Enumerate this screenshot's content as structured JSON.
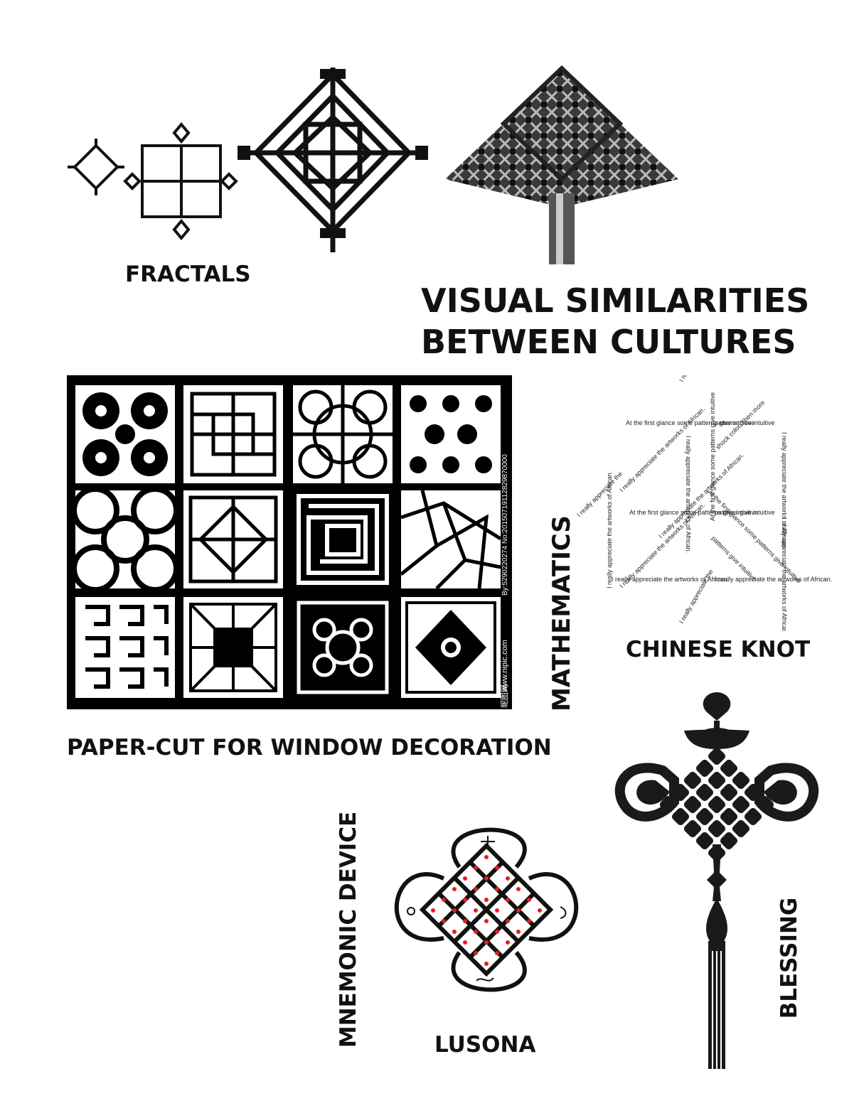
{
  "title": {
    "line1": "VISUAL SIMILARITIES",
    "line2": "BETWEEN CULTURES"
  },
  "labels": {
    "fractals": "FRACTALS",
    "paper_cut": "PAPER-CUT FOR WINDOW DECORATION",
    "mathematics": "MATHEMATICS",
    "chinese_knot": "CHINESE KNOT",
    "mnemonic_device": "MNEMONIC DEVICE",
    "lusona": "LUSONA",
    "blessing": "BLESSING"
  },
  "papercut": {
    "watermark_id": "By:5290220274 No:20150719112829870000",
    "watermark_site": "www.nipic.com",
    "watermark_cn": "昵图网"
  },
  "knot_text": {
    "phrases": [
      "I really appreciate the artworks of African.",
      "At the first glance some patterns give intuitive",
      "patterns give intuitive",
      "shock color. Then more",
      "I really appreciate the"
    ]
  },
  "colors": {
    "ink": "#111111",
    "background": "#ffffff",
    "dot": "#e0201c"
  }
}
